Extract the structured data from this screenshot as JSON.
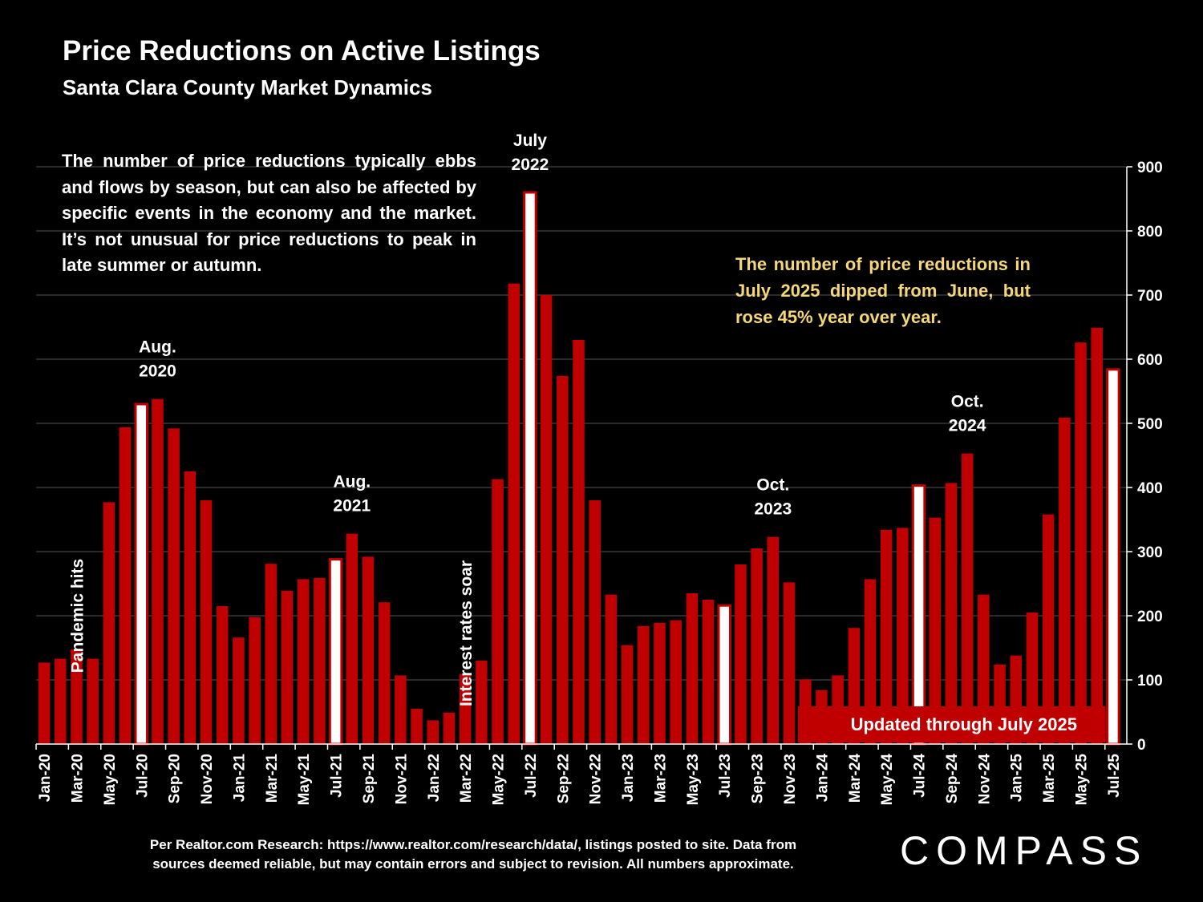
{
  "chart_data": {
    "type": "bar",
    "title": "Price Reductions on Active Listings",
    "subtitle": "Santa Clara County Market Dynamics",
    "ylim": [
      0,
      900
    ],
    "yticks": [
      0,
      100,
      200,
      300,
      400,
      500,
      600,
      700,
      800,
      900
    ],
    "y_axis_position": "right",
    "grid": true,
    "categories": [
      "Jan-20",
      "Feb-20",
      "Mar-20",
      "Apr-20",
      "May-20",
      "Jun-20",
      "Jul-20",
      "Aug-20",
      "Sep-20",
      "Oct-20",
      "Nov-20",
      "Dec-20",
      "Jan-21",
      "Feb-21",
      "Mar-21",
      "Apr-21",
      "May-21",
      "Jun-21",
      "Jul-21",
      "Aug-21",
      "Sep-21",
      "Oct-21",
      "Nov-21",
      "Dec-21",
      "Jan-22",
      "Feb-22",
      "Mar-22",
      "Apr-22",
      "May-22",
      "Jun-22",
      "Jul-22",
      "Aug-22",
      "Sep-22",
      "Oct-22",
      "Nov-22",
      "Dec-22",
      "Jan-23",
      "Feb-23",
      "Mar-23",
      "Apr-23",
      "May-23",
      "Jun-23",
      "Jul-23",
      "Aug-23",
      "Sep-23",
      "Oct-23",
      "Nov-23",
      "Dec-23",
      "Jan-24",
      "Feb-24",
      "Mar-24",
      "Apr-24",
      "May-24",
      "Jun-24",
      "Jul-24",
      "Aug-24",
      "Sep-24",
      "Oct-24",
      "Nov-24",
      "Dec-24",
      "Jan-25",
      "Feb-25",
      "Mar-25",
      "Apr-25",
      "May-25",
      "Jun-25",
      "Jul-25"
    ],
    "values": [
      127,
      133,
      148,
      133,
      377,
      494,
      530,
      538,
      492,
      425,
      380,
      215,
      166,
      198,
      281,
      239,
      257,
      259,
      288,
      328,
      292,
      221,
      107,
      55,
      37,
      49,
      109,
      130,
      413,
      718,
      860,
      700,
      574,
      630,
      380,
      233,
      154,
      184,
      189,
      193,
      235,
      225,
      216,
      280,
      305,
      323,
      252,
      101,
      84,
      107,
      181,
      257,
      334,
      337,
      403,
      353,
      407,
      453,
      233,
      124,
      138,
      205,
      358,
      509,
      626,
      649,
      584
    ],
    "highlighted": [
      "Jul-20",
      "Jul-21",
      "Jul-22",
      "Jul-23",
      "Jul-24",
      "Jul-25"
    ],
    "xtick_labels": [
      "Jan-20",
      "Mar-20",
      "May-20",
      "Jul-20",
      "Sep-20",
      "Nov-20",
      "Jan-21",
      "Mar-21",
      "May-21",
      "Jul-21",
      "Sep-21",
      "Nov-21",
      "Jan-22",
      "Mar-22",
      "May-22",
      "Jul-22",
      "Sep-22",
      "Nov-22",
      "Jan-23",
      "Mar-23",
      "May-23",
      "Jul-23",
      "Sep-23",
      "Nov-23",
      "Jan-24",
      "Mar-24",
      "May-24",
      "Jul-24",
      "Sep-24",
      "Nov-24",
      "Jan-25",
      "Mar-25",
      "May-25",
      "Jul-25"
    ],
    "annotations": [
      {
        "at": "Aug-20",
        "lines": [
          "Aug.",
          "2020"
        ]
      },
      {
        "at": "Aug-21",
        "lines": [
          "Aug.",
          "2021"
        ]
      },
      {
        "at": "Jul-22",
        "lines": [
          "July",
          "2022"
        ]
      },
      {
        "at": "Oct-23",
        "lines": [
          "Oct.",
          "2023"
        ]
      },
      {
        "at": "Oct-24",
        "lines": [
          "Oct.",
          "2024"
        ]
      }
    ],
    "vertical_annotations": [
      {
        "at": "Mar-20",
        "text": "Pandemic hits"
      },
      {
        "at": "Mar-22",
        "text": "Interest rates soar"
      }
    ],
    "banner": "Updated through July 2025"
  },
  "text": {
    "intro": "The number of price reductions typically ebbs and flows by season, but can also be affected by specific events in the economy and the market. It’s not unusual for price reductions to peak in late summer or autumn.",
    "callout": "The number of price reductions in July 2025 dipped from June, but rose 45% year over year.",
    "footnote_line1": "Per Realtor.com Research:  https://www.realtor.com/research/data/, listings posted to site. Data from",
    "footnote_line2": "sources deemed reliable, but may contain errors and subject to revision. All numbers approximate.",
    "logo": "COMPASS"
  }
}
